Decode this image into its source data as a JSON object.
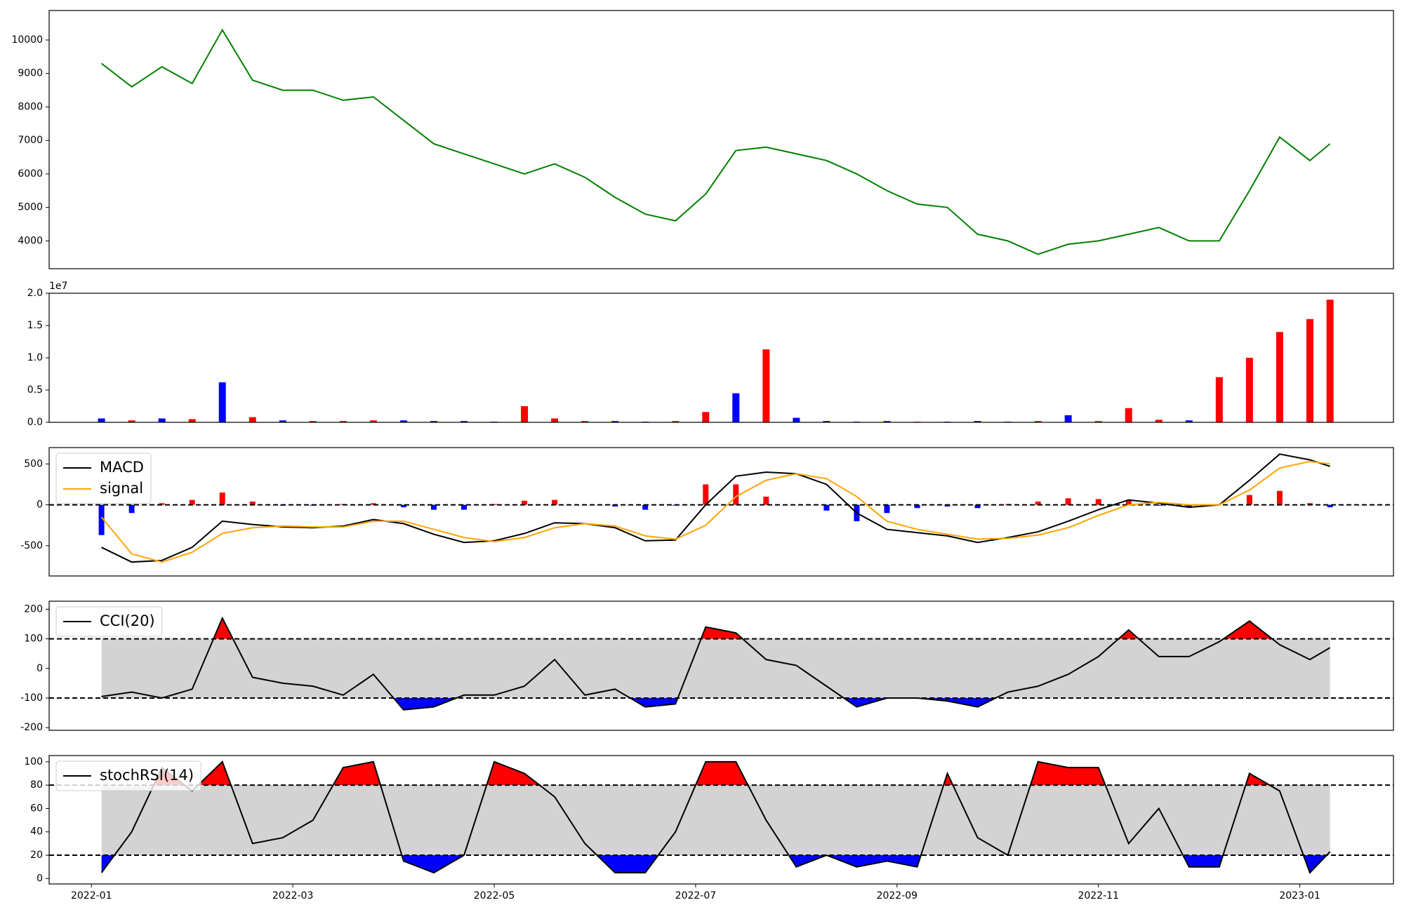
{
  "chart_data": [
    {
      "type": "line",
      "x": [
        0.1,
        0.4,
        0.7,
        1.0,
        1.3,
        1.6,
        1.9,
        2.2,
        2.5,
        2.8,
        3.1,
        3.4,
        3.7,
        4.0,
        4.3,
        4.6,
        4.9,
        5.2,
        5.5,
        5.8,
        6.1,
        6.4,
        6.7,
        7.0,
        7.3,
        7.6,
        7.9,
        8.2,
        8.5,
        8.8,
        9.1,
        9.4,
        9.7,
        10.0,
        10.3,
        10.6,
        10.9,
        11.2,
        11.5,
        11.8,
        12.1,
        12.3
      ],
      "series": [
        {
          "color": "green",
          "values": [
            9300,
            8600,
            9200,
            8700,
            10300,
            8800,
            8500,
            8500,
            8200,
            8300,
            7600,
            6900,
            6600,
            6300,
            6000,
            6300,
            5900,
            5300,
            4800,
            4600,
            5400,
            6700,
            6800,
            6600,
            6400,
            6000,
            5500,
            5100,
            5000,
            4200,
            4000,
            3600,
            3900,
            4000,
            4200,
            4400,
            4000,
            4000,
            5500,
            7100,
            6400,
            6900
          ]
        }
      ],
      "xlim": [
        -0.42,
        12.93
      ],
      "ylim": [
        3170,
        10880
      ],
      "yticks": [
        4000,
        5000,
        6000,
        7000,
        8000,
        9000,
        10000
      ]
    },
    {
      "type": "bar",
      "x": [
        0.1,
        0.4,
        0.7,
        1.0,
        1.3,
        1.6,
        1.9,
        2.2,
        2.5,
        2.8,
        3.1,
        3.4,
        3.7,
        4.0,
        4.3,
        4.6,
        4.9,
        5.2,
        5.5,
        5.8,
        6.1,
        6.4,
        6.7,
        7.0,
        7.3,
        7.6,
        7.9,
        8.2,
        8.5,
        8.8,
        9.1,
        9.4,
        9.7,
        10.0,
        10.3,
        10.6,
        10.9,
        11.2,
        11.5,
        11.8,
        12.1,
        12.3
      ],
      "values": [
        600000,
        300000,
        600000,
        500000,
        6200000,
        800000,
        300000,
        200000,
        200000,
        300000,
        300000,
        200000,
        200000,
        100000,
        2500000,
        600000,
        200000,
        200000,
        100000,
        200000,
        1600000,
        4500000,
        11300000,
        700000,
        200000,
        100000,
        200000,
        100000,
        100000,
        200000,
        100000,
        200000,
        1100000,
        200000,
        2200000,
        400000,
        300000,
        7000000,
        10000000,
        14000000,
        16000000,
        19000000
      ],
      "colors": [
        "blue",
        "red",
        "blue",
        "red",
        "blue",
        "red",
        "blue",
        "red",
        "red",
        "red",
        "blue",
        "blue",
        "blue",
        "blue",
        "red",
        "red",
        "red",
        "blue",
        "blue",
        "red",
        "red",
        "blue",
        "red",
        "blue",
        "blue",
        "blue",
        "blue",
        "red",
        "blue",
        "blue",
        "blue",
        "red",
        "blue",
        "red",
        "red",
        "red",
        "blue",
        "red",
        "red",
        "red",
        "red",
        "red"
      ],
      "offset_label": "1e7",
      "xlim": [
        -0.42,
        12.93
      ],
      "ylim": [
        0,
        20000000
      ],
      "yticks": [
        {
          "value": 0,
          "label": "0.0"
        },
        {
          "value": 5000000,
          "label": "0.5"
        },
        {
          "value": 10000000,
          "label": "1.0"
        },
        {
          "value": 15000000,
          "label": "1.5"
        },
        {
          "value": 20000000,
          "label": "2.0"
        }
      ]
    },
    {
      "type": "line",
      "x": [
        0.1,
        0.4,
        0.7,
        1.0,
        1.3,
        1.6,
        1.9,
        2.2,
        2.5,
        2.8,
        3.1,
        3.4,
        3.7,
        4.0,
        4.3,
        4.6,
        4.9,
        5.2,
        5.5,
        5.8,
        6.1,
        6.4,
        6.7,
        7.0,
        7.3,
        7.6,
        7.9,
        8.2,
        8.5,
        8.8,
        9.1,
        9.4,
        9.7,
        10.0,
        10.3,
        10.6,
        10.9,
        11.2,
        11.5,
        11.8,
        12.1,
        12.3
      ],
      "series": [
        {
          "name": "MACD",
          "color": "black",
          "values": [
            -520,
            -700,
            -680,
            -520,
            -200,
            -240,
            -270,
            -280,
            -260,
            -180,
            -230,
            -360,
            -460,
            -440,
            -350,
            -220,
            -230,
            -280,
            -440,
            -430,
            0,
            350,
            400,
            380,
            250,
            -100,
            -300,
            -340,
            -380,
            -460,
            -400,
            -330,
            -200,
            -60,
            60,
            20,
            -30,
            0,
            300,
            620,
            550,
            470
          ]
        },
        {
          "name": "signal",
          "color": "orange",
          "values": [
            -150,
            -600,
            -700,
            -580,
            -350,
            -280,
            -260,
            -270,
            -270,
            -200,
            -200,
            -300,
            -400,
            -450,
            -400,
            -280,
            -230,
            -260,
            -380,
            -420,
            -250,
            100,
            300,
            380,
            320,
            100,
            -200,
            -300,
            -360,
            -420,
            -410,
            -370,
            -280,
            -130,
            0,
            30,
            0,
            0,
            180,
            450,
            530,
            500
          ]
        }
      ],
      "histogram": {
        "pos_color": "red",
        "neg_color": "blue",
        "values": [
          -370,
          -100,
          20,
          60,
          150,
          40,
          -10,
          -10,
          10,
          20,
          -30,
          -60,
          -60,
          10,
          50,
          60,
          0,
          -20,
          -60,
          -10,
          250,
          250,
          100,
          0,
          -70,
          -200,
          -100,
          -40,
          -20,
          -40,
          10,
          40,
          80,
          70,
          60,
          -10,
          -30,
          0,
          120,
          170,
          20,
          -30
        ]
      },
      "hlines": [
        0
      ],
      "legend": "upper left",
      "xlim": [
        -0.42,
        12.93
      ],
      "ylim": [
        -870,
        700
      ],
      "yticks": [
        -500,
        0,
        500
      ]
    },
    {
      "type": "line",
      "x": [
        0.1,
        0.4,
        0.7,
        1.0,
        1.3,
        1.6,
        1.9,
        2.2,
        2.5,
        2.8,
        3.1,
        3.4,
        3.7,
        4.0,
        4.3,
        4.6,
        4.9,
        5.2,
        5.5,
        5.8,
        6.1,
        6.4,
        6.7,
        7.0,
        7.3,
        7.6,
        7.9,
        8.2,
        8.5,
        8.8,
        9.1,
        9.4,
        9.7,
        10.0,
        10.3,
        10.6,
        10.9,
        11.2,
        11.5,
        11.8,
        12.1,
        12.3
      ],
      "series": [
        {
          "name": "CCI(20)",
          "color": "black",
          "values": [
            -95,
            -80,
            -100,
            -70,
            170,
            -30,
            -50,
            -60,
            -90,
            -20,
            -140,
            -130,
            -90,
            -90,
            -60,
            30,
            -90,
            -70,
            -130,
            -120,
            140,
            120,
            30,
            10,
            -60,
            -130,
            -100,
            -100,
            -110,
            -130,
            -80,
            -60,
            -20,
            40,
            130,
            40,
            40,
            90,
            160,
            80,
            30,
            70
          ]
        }
      ],
      "bands": {
        "lower": -100,
        "upper": 100,
        "fill": "lightgray",
        "over_color": "red",
        "under_color": "blue"
      },
      "legend": "upper left",
      "xlim": [
        -0.42,
        12.93
      ],
      "ylim": [
        -209,
        227
      ],
      "yticks": [
        -200,
        -100,
        0,
        100,
        200
      ]
    },
    {
      "type": "line",
      "x": [
        0.1,
        0.4,
        0.7,
        1.0,
        1.3,
        1.6,
        1.9,
        2.2,
        2.5,
        2.8,
        3.1,
        3.4,
        3.7,
        4.0,
        4.3,
        4.6,
        4.9,
        5.2,
        5.5,
        5.8,
        6.1,
        6.4,
        6.7,
        7.0,
        7.3,
        7.6,
        7.9,
        8.2,
        8.5,
        8.8,
        9.1,
        9.4,
        9.7,
        10.0,
        10.3,
        10.6,
        10.9,
        11.2,
        11.5,
        11.8,
        12.1,
        12.3
      ],
      "series": [
        {
          "name": "stochRSI(14)",
          "color": "black",
          "values": [
            5,
            40,
            95,
            75,
            100,
            30,
            35,
            50,
            95,
            100,
            15,
            5,
            20,
            100,
            90,
            70,
            30,
            5,
            5,
            40,
            100,
            100,
            50,
            10,
            20,
            10,
            15,
            10,
            90,
            35,
            20,
            100,
            95,
            95,
            30,
            60,
            10,
            10,
            90,
            75,
            5,
            23
          ]
        }
      ],
      "bands": {
        "lower": 20,
        "upper": 80,
        "fill": "lightgray",
        "over_color": "red",
        "under_color": "blue"
      },
      "legend": "upper left",
      "xlim": [
        -0.42,
        12.93
      ],
      "ylim": [
        -4.6,
        105.3
      ],
      "yticks": [
        0,
        20,
        40,
        60,
        80,
        100
      ],
      "xticks": [
        {
          "value": 0,
          "label": "2022-01"
        },
        {
          "value": 2,
          "label": "2022-03"
        },
        {
          "value": 4,
          "label": "2022-05"
        },
        {
          "value": 6,
          "label": "2022-07"
        },
        {
          "value": 8,
          "label": "2022-09"
        },
        {
          "value": 10,
          "label": "2022-11"
        },
        {
          "value": 12,
          "label": "2023-01"
        }
      ]
    }
  ]
}
